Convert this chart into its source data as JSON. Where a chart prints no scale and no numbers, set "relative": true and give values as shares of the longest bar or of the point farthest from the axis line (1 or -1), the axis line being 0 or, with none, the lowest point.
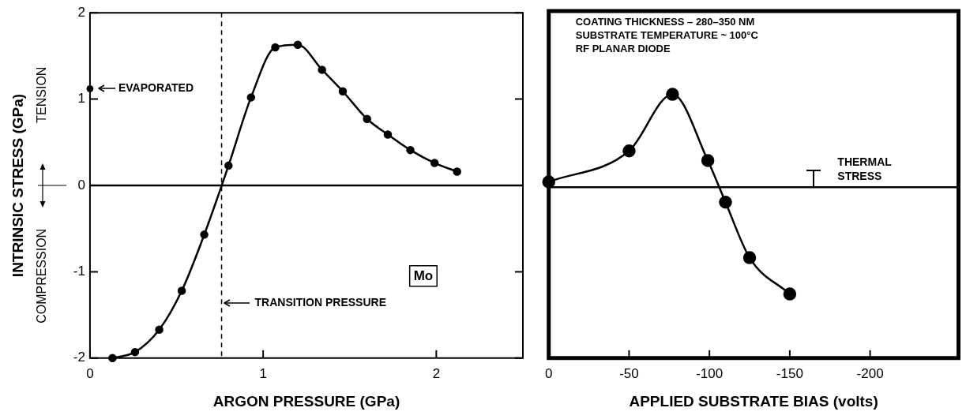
{
  "chart_data": [
    {
      "type": "line",
      "xlabel": "ARGON PRESSURE (GPa)",
      "ylabel": "INTRINSIC STRESS (GPa)",
      "xlim": [
        0,
        2.5
      ],
      "xticks": [
        0,
        1,
        2
      ],
      "ylim": [
        -2,
        2
      ],
      "yticks": [
        -2,
        -1,
        0,
        1,
        2
      ],
      "marker": "circle",
      "series": [
        {
          "color": "#000000",
          "x": [
            0.13,
            0.26,
            0.4,
            0.53,
            0.66,
            0.8,
            0.93,
            1.07,
            1.2,
            1.34,
            1.46,
            1.6,
            1.72,
            1.85,
            1.99,
            2.12
          ],
          "values": [
            -2.0,
            -1.93,
            -1.67,
            -1.22,
            -0.57,
            0.23,
            1.02,
            1.6,
            1.63,
            1.34,
            1.09,
            0.77,
            0.59,
            0.41,
            0.26,
            0.16
          ]
        },
        {
          "type": "scatter",
          "color": "#000000",
          "x": [
            0
          ],
          "values": [
            1.12
          ]
        }
      ],
      "ref_lines": [
        {
          "axis": "x",
          "value": 0.76,
          "label": "TRANSITION PRESSURE",
          "line_style": "dashed"
        },
        {
          "axis": "y",
          "value": 0
        }
      ],
      "annotations": [
        {
          "text": "EVAPORATED",
          "x": 0,
          "y": 1.12
        },
        "Mo",
        "TENSION",
        "COMPRESSION"
      ]
    },
    {
      "type": "line",
      "relative": true,
      "xlabel": "APPLIED SUBSTRATE BIAS (volts)",
      "xlim": [
        0,
        -255
      ],
      "xticks": [
        0,
        -50,
        -100,
        -150,
        -200
      ],
      "tick_labels": "x",
      "marker": "circle",
      "series": [
        {
          "color": "#000000",
          "x": [
            0,
            -50,
            -77,
            -99,
            -110,
            -125,
            -150
          ],
          "values": [
            0.05,
            0.34,
            0.87,
            0.25,
            -0.14,
            -0.66,
            -1
          ]
        }
      ],
      "ref_lines": [
        {
          "axis": "y",
          "value": 0
        }
      ],
      "annotations": [
        "COATING THICKNESS – 280–350 NM",
        "SUBSTRATE TEMPERATURE ~ 100°C",
        "RF PLANAR DIODE",
        "THERMAL STRESS"
      ]
    }
  ]
}
